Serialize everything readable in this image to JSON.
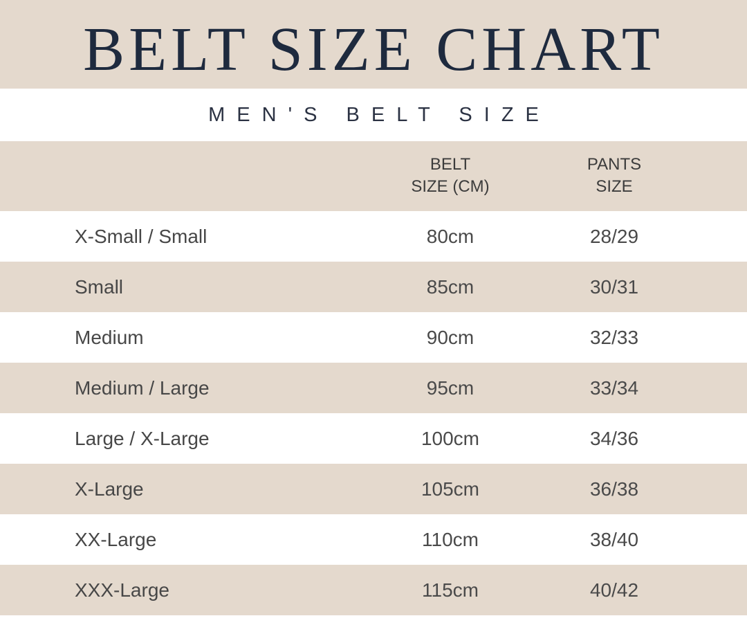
{
  "title": "BELT SIZE CHART",
  "subtitle": "MEN'S BELT SIZE",
  "colors": {
    "band": "#e4d9cd",
    "title_text": "#1e2a3e",
    "body_text": "#3a3a3a",
    "white": "#ffffff"
  },
  "table": {
    "headers": {
      "belt_line1": "BELT",
      "belt_line2": "SIZE (CM)",
      "pants_line1": "PANTS",
      "pants_line2": "SIZE"
    },
    "rows": [
      {
        "size": "X-Small / Small",
        "belt": "80cm",
        "pants": "28/29"
      },
      {
        "size": "Small",
        "belt": "85cm",
        "pants": "30/31"
      },
      {
        "size": "Medium",
        "belt": "90cm",
        "pants": "32/33"
      },
      {
        "size": "Medium / Large",
        "belt": "95cm",
        "pants": "33/34"
      },
      {
        "size": "Large / X-Large",
        "belt": "100cm",
        "pants": "34/36"
      },
      {
        "size": "X-Large",
        "belt": "105cm",
        "pants": "36/38"
      },
      {
        "size": "XX-Large",
        "belt": "110cm",
        "pants": "38/40"
      },
      {
        "size": "XXX-Large",
        "belt": "115cm",
        "pants": "40/42"
      }
    ]
  }
}
